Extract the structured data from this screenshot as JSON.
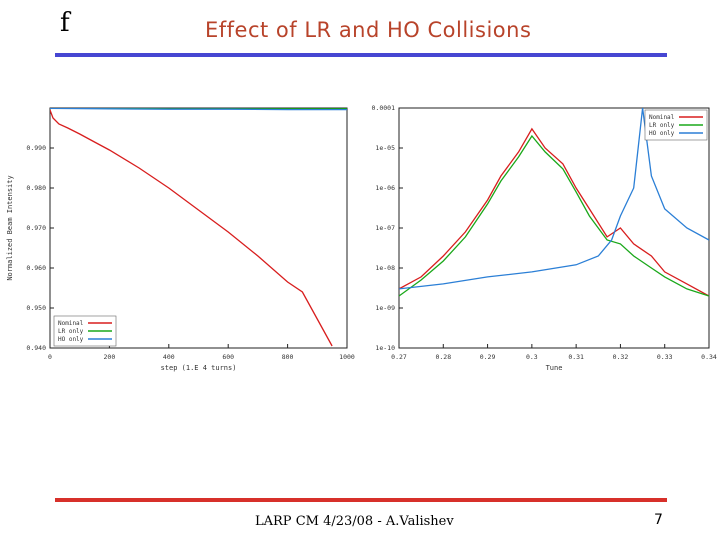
{
  "slide": {
    "mark": "f",
    "title": "Effect of LR and HO Collisions",
    "footer": "LARP CM 4/23/08 - A.Valishev",
    "page_number": "7"
  },
  "colors": {
    "title": "#b8432a",
    "top_rule": "#4646d2",
    "bottom_rule": "#d7302a",
    "nominal": "#d81e1e",
    "lr_only": "#1aa81a",
    "ho_only": "#2b7fd6"
  },
  "chart_data": [
    {
      "type": "line",
      "xlabel": "step (1.E 4 turns)",
      "ylabel": "Normalized Beam Intensity",
      "xlim": [
        0,
        1000
      ],
      "ylim": [
        0.94,
        1.0
      ],
      "x_ticks": [
        0,
        200,
        400,
        600,
        800,
        1000
      ],
      "x_tick_labels": [
        "0",
        "200",
        "400",
        "600",
        "800",
        "1000"
      ],
      "y_ticks": [
        0.94,
        0.95,
        0.96,
        0.97,
        0.98,
        0.99
      ],
      "y_tick_labels": [
        "0.940",
        "0.950",
        "0.960",
        "0.970",
        "0.980",
        "0.990"
      ],
      "legend": [
        "Nominal",
        "LR only",
        "HO only"
      ],
      "legend_position": "bottom-left",
      "grid": false,
      "series": [
        {
          "name": "Nominal",
          "color": "#d81e1e",
          "x": [
            0,
            10,
            30,
            60,
            100,
            150,
            200,
            300,
            400,
            500,
            600,
            700,
            800,
            850,
            950
          ],
          "y": [
            0.9995,
            0.9975,
            0.996,
            0.995,
            0.9935,
            0.9915,
            0.9895,
            0.985,
            0.98,
            0.9745,
            0.969,
            0.963,
            0.9565,
            0.954,
            0.9405
          ]
        },
        {
          "name": "LR only",
          "color": "#1aa81a",
          "x": [
            0,
            200,
            400,
            600,
            800,
            1000
          ],
          "y": [
            0.9999,
            0.9999,
            0.9998,
            0.9998,
            0.9998,
            0.9998
          ]
        },
        {
          "name": "HO only",
          "color": "#2b7fd6",
          "x": [
            0,
            200,
            400,
            600,
            800,
            1000
          ],
          "y": [
            0.9999,
            0.9998,
            0.9997,
            0.9997,
            0.9996,
            0.9996
          ]
        }
      ]
    },
    {
      "type": "line",
      "xlabel": "Tune",
      "ylabel": "",
      "xlim": [
        0.27,
        0.34
      ],
      "ylim": [
        1e-10,
        0.0001
      ],
      "yscale": "log",
      "x_ticks": [
        0.27,
        0.28,
        0.29,
        0.3,
        0.31,
        0.32,
        0.33,
        0.34
      ],
      "x_tick_labels": [
        "0.27",
        "0.28",
        "0.29",
        "0.3",
        "0.31",
        "0.32",
        "0.33",
        "0.34"
      ],
      "y_ticks": [
        1e-10,
        1e-09,
        1e-08,
        1e-07,
        1e-06,
        1e-05,
        0.0001
      ],
      "y_tick_labels": [
        "1e-10",
        "1e-09",
        "1e-08",
        "1e-07",
        "1e-06",
        "1e-05",
        "0.0001"
      ],
      "legend": [
        "Nominal",
        "LR only",
        "HO only"
      ],
      "legend_position": "top-right",
      "grid": false,
      "series": [
        {
          "name": "Nominal",
          "color": "#d81e1e",
          "x": [
            0.27,
            0.275,
            0.28,
            0.285,
            0.29,
            0.293,
            0.297,
            0.3,
            0.303,
            0.307,
            0.31,
            0.313,
            0.317,
            0.32,
            0.323,
            0.327,
            0.33,
            0.335,
            0.34
          ],
          "y": [
            3e-09,
            6e-09,
            2e-08,
            8e-08,
            5e-07,
            2e-06,
            8e-06,
            3e-05,
            1e-05,
            4e-06,
            1e-06,
            3e-07,
            6e-08,
            1e-07,
            4e-08,
            2e-08,
            8e-09,
            4e-09,
            2e-09
          ]
        },
        {
          "name": "LR only",
          "color": "#1aa81a",
          "x": [
            0.27,
            0.275,
            0.28,
            0.285,
            0.29,
            0.293,
            0.297,
            0.3,
            0.303,
            0.307,
            0.31,
            0.313,
            0.317,
            0.32,
            0.323,
            0.327,
            0.33,
            0.335,
            0.34
          ],
          "y": [
            2e-09,
            5e-09,
            1.5e-08,
            6e-08,
            4e-07,
            1.5e-06,
            6e-06,
            2e-05,
            8e-06,
            3e-06,
            8e-07,
            2e-07,
            5e-08,
            4e-08,
            2e-08,
            1e-08,
            6e-09,
            3e-09,
            2e-09
          ]
        },
        {
          "name": "HO only",
          "color": "#2b7fd6",
          "x": [
            0.27,
            0.28,
            0.29,
            0.3,
            0.31,
            0.315,
            0.318,
            0.32,
            0.323,
            0.325,
            0.327,
            0.33,
            0.335,
            0.34
          ],
          "y": [
            3e-09,
            4e-09,
            6e-09,
            8e-09,
            1.2e-08,
            2e-08,
            5e-08,
            2e-07,
            1e-06,
            0.0001,
            2e-06,
            3e-07,
            1e-07,
            5e-08
          ]
        }
      ]
    }
  ]
}
